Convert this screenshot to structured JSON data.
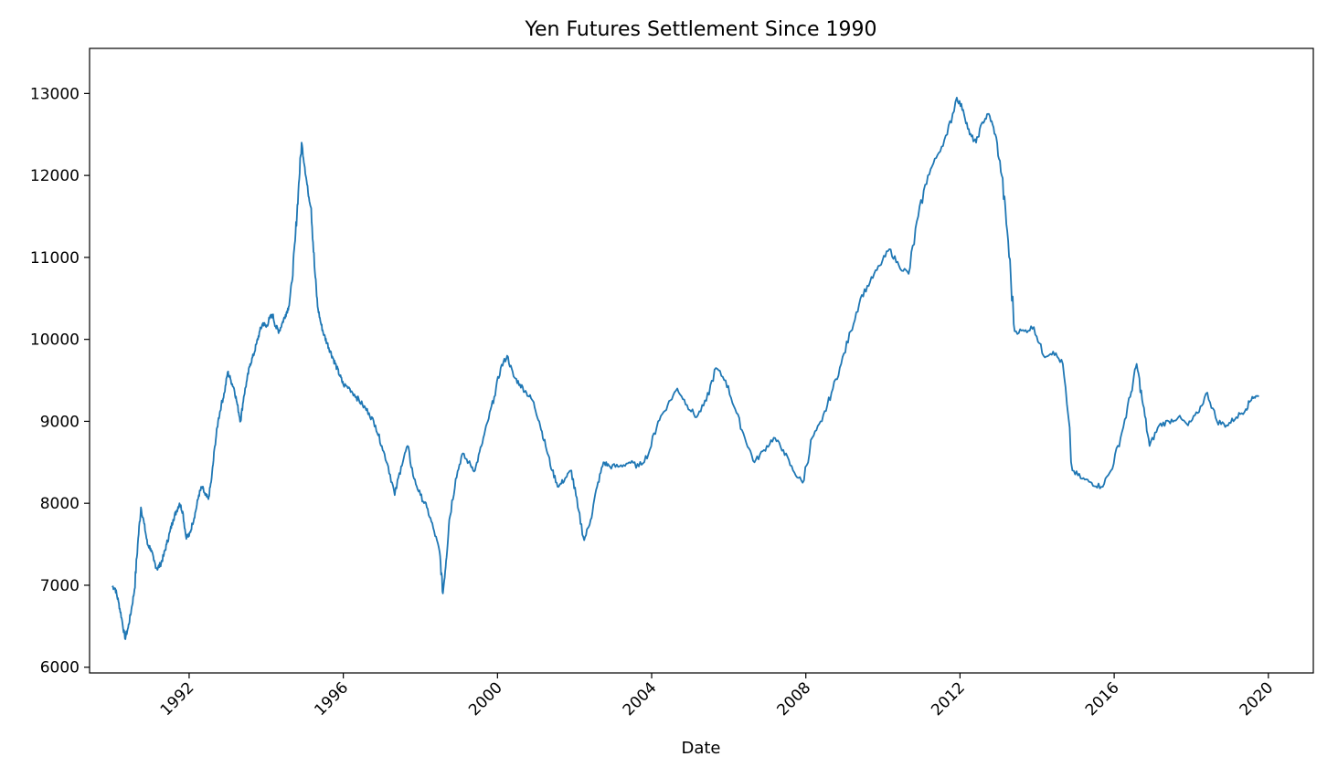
{
  "chart_data": {
    "type": "line",
    "title": "Yen Futures Settlement Since 1990",
    "xlabel": "Date",
    "ylabel": "",
    "xlim": [
      "1989-06-01",
      "2021-03-01"
    ],
    "ylim": [
      5930,
      13550
    ],
    "grid": false,
    "legend": "none",
    "x_ticks": [
      "1992",
      "1996",
      "2000",
      "2004",
      "2008",
      "2012",
      "2016",
      "2020"
    ],
    "y_ticks": [
      "6000",
      "7000",
      "8000",
      "9000",
      "10000",
      "11000",
      "12000",
      "13000"
    ],
    "series": [
      {
        "color": "#1f77b4",
        "x": [
          "1990-01",
          "1990-02",
          "1990-03",
          "1990-04",
          "1990-05",
          "1990-06",
          "1990-07",
          "1990-08",
          "1990-09",
          "1990-10",
          "1990-11",
          "1990-12",
          "1991-01",
          "1991-02",
          "1991-03",
          "1991-04",
          "1991-05",
          "1991-06",
          "1991-07",
          "1991-08",
          "1991-09",
          "1991-10",
          "1991-11",
          "1991-12",
          "1992-01",
          "1992-02",
          "1992-03",
          "1992-04",
          "1992-05",
          "1992-06",
          "1992-07",
          "1992-08",
          "1992-09",
          "1992-10",
          "1992-11",
          "1992-12",
          "1993-01",
          "1993-02",
          "1993-03",
          "1993-04",
          "1993-05",
          "1993-06",
          "1993-07",
          "1993-08",
          "1993-09",
          "1993-10",
          "1993-11",
          "1993-12",
          "1994-01",
          "1994-02",
          "1994-03",
          "1994-04",
          "1994-05",
          "1994-06",
          "1994-07",
          "1994-08",
          "1994-09",
          "1994-10",
          "1994-11",
          "1994-12",
          "1995-01",
          "1995-02",
          "1995-03",
          "1995-04",
          "1995-05",
          "1995-06",
          "1995-07",
          "1995-08",
          "1995-09",
          "1995-10",
          "1995-11",
          "1995-12",
          "1996-01",
          "1996-03",
          "1996-05",
          "1996-07",
          "1996-09",
          "1996-11",
          "1997-01",
          "1997-03",
          "1997-05",
          "1997-07",
          "1997-09",
          "1997-11",
          "1998-01",
          "1998-03",
          "1998-05",
          "1998-07",
          "1998-08",
          "1998-09",
          "1998-10",
          "1998-12",
          "1999-02",
          "1999-04",
          "1999-06",
          "1999-08",
          "1999-10",
          "1999-12",
          "2000-02",
          "2000-04",
          "2000-06",
          "2000-08",
          "2000-10",
          "2000-12",
          "2001-02",
          "2001-04",
          "2001-06",
          "2001-08",
          "2001-10",
          "2001-12",
          "2002-02",
          "2002-04",
          "2002-06",
          "2002-08",
          "2002-10",
          "2002-12",
          "2003-03",
          "2003-06",
          "2003-09",
          "2003-12",
          "2004-03",
          "2004-06",
          "2004-09",
          "2004-12",
          "2005-03",
          "2005-06",
          "2005-09",
          "2005-12",
          "2006-03",
          "2006-06",
          "2006-09",
          "2006-12",
          "2007-03",
          "2007-06",
          "2007-09",
          "2007-12",
          "2008-03",
          "2008-06",
          "2008-09",
          "2008-12",
          "2009-03",
          "2009-06",
          "2009-09",
          "2009-12",
          "2010-03",
          "2010-06",
          "2010-09",
          "2010-12",
          "2011-03",
          "2011-06",
          "2011-09",
          "2011-12",
          "2012-02",
          "2012-04",
          "2012-06",
          "2012-08",
          "2012-10",
          "2012-12",
          "2013-02",
          "2013-04",
          "2013-06",
          "2013-09",
          "2013-12",
          "2014-03",
          "2014-06",
          "2014-09",
          "2014-12",
          "2015-03",
          "2015-06",
          "2015-09",
          "2015-12",
          "2016-03",
          "2016-06",
          "2016-08",
          "2016-10",
          "2016-12",
          "2017-03",
          "2017-06",
          "2017-09",
          "2017-12",
          "2018-03",
          "2018-06",
          "2018-09",
          "2018-12",
          "2019-03",
          "2019-06",
          "2019-08",
          "2019-10"
        ],
        "y": [
          6990,
          6960,
          6800,
          6600,
          6350,
          6480,
          6700,
          6950,
          7500,
          7950,
          7750,
          7500,
          7450,
          7300,
          7200,
          7250,
          7350,
          7500,
          7650,
          7800,
          7900,
          8000,
          7900,
          7600,
          7600,
          7750,
          7900,
          8100,
          8200,
          8100,
          8050,
          8300,
          8700,
          9000,
          9200,
          9350,
          9600,
          9500,
          9400,
          9200,
          9000,
          9300,
          9500,
          9700,
          9800,
          9950,
          10100,
          10200,
          10150,
          10250,
          10300,
          10150,
          10100,
          10200,
          10300,
          10400,
          10700,
          11200,
          11800,
          12400,
          12100,
          11800,
          11600,
          10900,
          10400,
          10200,
          10050,
          9950,
          9850,
          9750,
          9650,
          9550,
          9450,
          9400,
          9300,
          9200,
          9100,
          8950,
          8700,
          8450,
          8100,
          8450,
          8700,
          8300,
          8100,
          7950,
          7700,
          7400,
          6900,
          7300,
          7800,
          8300,
          8600,
          8500,
          8400,
          8700,
          9000,
          9300,
          9650,
          9800,
          9550,
          9450,
          9350,
          9250,
          9000,
          8700,
          8400,
          8200,
          8300,
          8400,
          7950,
          7550,
          7800,
          8200,
          8500,
          8450,
          8450,
          8500,
          8450,
          8600,
          9000,
          9200,
          9400,
          9200,
          9050,
          9250,
          9650,
          9500,
          9150,
          8800,
          8500,
          8650,
          8800,
          8650,
          8400,
          8250,
          8800,
          9000,
          9350,
          9700,
          10100,
          10500,
          10700,
          10900,
          11100,
          10900,
          10800,
          11500,
          12000,
          12250,
          12500,
          12950,
          12800,
          12500,
          12400,
          12650,
          12750,
          12500,
          12000,
          11200,
          10100,
          10100,
          10150,
          9800,
          9850,
          9700,
          8400,
          8300,
          8250,
          8200,
          8400,
          8800,
          9300,
          9700,
          9200,
          8700,
          8950,
          9000,
          9050,
          8950,
          9100,
          9350,
          9000,
          8950,
          9050,
          9150,
          9300,
          9300
        ]
      }
    ]
  }
}
